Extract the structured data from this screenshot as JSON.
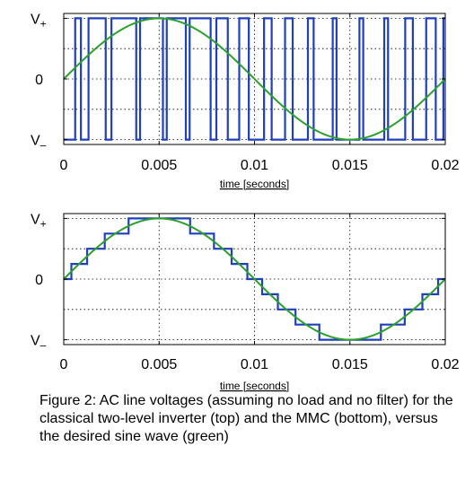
{
  "chart_data": [
    {
      "type": "line",
      "panel": "top",
      "xlabel": "time [seconds]",
      "xlim": [
        0,
        0.02
      ],
      "ylim": [
        -1.08,
        1.08
      ],
      "x_ticks": [
        {
          "value": 0,
          "label": "0"
        },
        {
          "value": 0.005,
          "label": "0.005"
        },
        {
          "value": 0.01,
          "label": "0.01"
        },
        {
          "value": 0.015,
          "label": "0.015"
        },
        {
          "value": 0.02,
          "label": "0.02"
        }
      ],
      "y_ticks": [
        {
          "value": 1,
          "label": "V",
          "sub": "+"
        },
        {
          "value": 0,
          "label": "0",
          "sub": ""
        },
        {
          "value": -1,
          "label": "V",
          "sub": "–"
        }
      ],
      "y_grid": [
        1,
        0.5,
        0,
        -0.5,
        -1
      ],
      "grid": true,
      "series": [
        {
          "role": "sine",
          "color": "#2ca02c",
          "amplitude": 1,
          "frequency_hz": 50
        },
        {
          "role": "two-level PWM",
          "color": "#1f3fbf",
          "transitions": [
            {
              "x": 0,
              "y": -1
            },
            {
              "x": 0.0006,
              "y": 1
            },
            {
              "x": 0.0009,
              "y": -1
            },
            {
              "x": 0.0013,
              "y": 1
            },
            {
              "x": 0.0022,
              "y": -1
            },
            {
              "x": 0.0025,
              "y": 1
            },
            {
              "x": 0.0038,
              "y": -1
            },
            {
              "x": 0.004,
              "y": 1
            },
            {
              "x": 0.0052,
              "y": -1
            },
            {
              "x": 0.0054,
              "y": 1
            },
            {
              "x": 0.0064,
              "y": -1
            },
            {
              "x": 0.0066,
              "y": 1
            },
            {
              "x": 0.0077,
              "y": -1
            },
            {
              "x": 0.008,
              "y": 1
            },
            {
              "x": 0.0086,
              "y": -1
            },
            {
              "x": 0.0092,
              "y": 1
            },
            {
              "x": 0.0097,
              "y": -1
            },
            {
              "x": 0.0105,
              "y": 1
            },
            {
              "x": 0.0109,
              "y": -1
            },
            {
              "x": 0.0116,
              "y": 1
            },
            {
              "x": 0.012,
              "y": -1
            },
            {
              "x": 0.0128,
              "y": 1
            },
            {
              "x": 0.0131,
              "y": -1
            },
            {
              "x": 0.0141,
              "y": 1
            },
            {
              "x": 0.0143,
              "y": -1
            },
            {
              "x": 0.0155,
              "y": 1
            },
            {
              "x": 0.0157,
              "y": -1
            },
            {
              "x": 0.0168,
              "y": 1
            },
            {
              "x": 0.017,
              "y": -1
            },
            {
              "x": 0.0179,
              "y": 1
            },
            {
              "x": 0.0183,
              "y": -1
            },
            {
              "x": 0.019,
              "y": 1
            },
            {
              "x": 0.0195,
              "y": -1
            },
            {
              "x": 0.0199,
              "y": 1
            }
          ]
        }
      ]
    },
    {
      "type": "line",
      "panel": "bottom",
      "xlabel": "time [seconds]",
      "xlim": [
        0,
        0.02
      ],
      "ylim": [
        -1.08,
        1.08
      ],
      "x_ticks": [
        {
          "value": 0,
          "label": "0"
        },
        {
          "value": 0.005,
          "label": "0.005"
        },
        {
          "value": 0.01,
          "label": "0.01"
        },
        {
          "value": 0.015,
          "label": "0.015"
        },
        {
          "value": 0.02,
          "label": "0.02"
        }
      ],
      "y_ticks": [
        {
          "value": 1,
          "label": "V",
          "sub": "+"
        },
        {
          "value": 0,
          "label": "0",
          "sub": ""
        },
        {
          "value": -1,
          "label": "V",
          "sub": "–"
        }
      ],
      "y_grid": [
        1,
        0.5,
        0,
        -0.5,
        -1
      ],
      "grid": true,
      "series": [
        {
          "role": "sine",
          "color": "#2ca02c",
          "amplitude": 1,
          "frequency_hz": 50
        },
        {
          "role": "MMC staircase",
          "color": "#1f3fbf",
          "levels": 8
        }
      ]
    }
  ],
  "caption": "Figure 2: AC line voltages (assuming no load and no filter) for the classical two-level inverter (top) and the MMC (bottom), versus the desired sine wave (green)"
}
